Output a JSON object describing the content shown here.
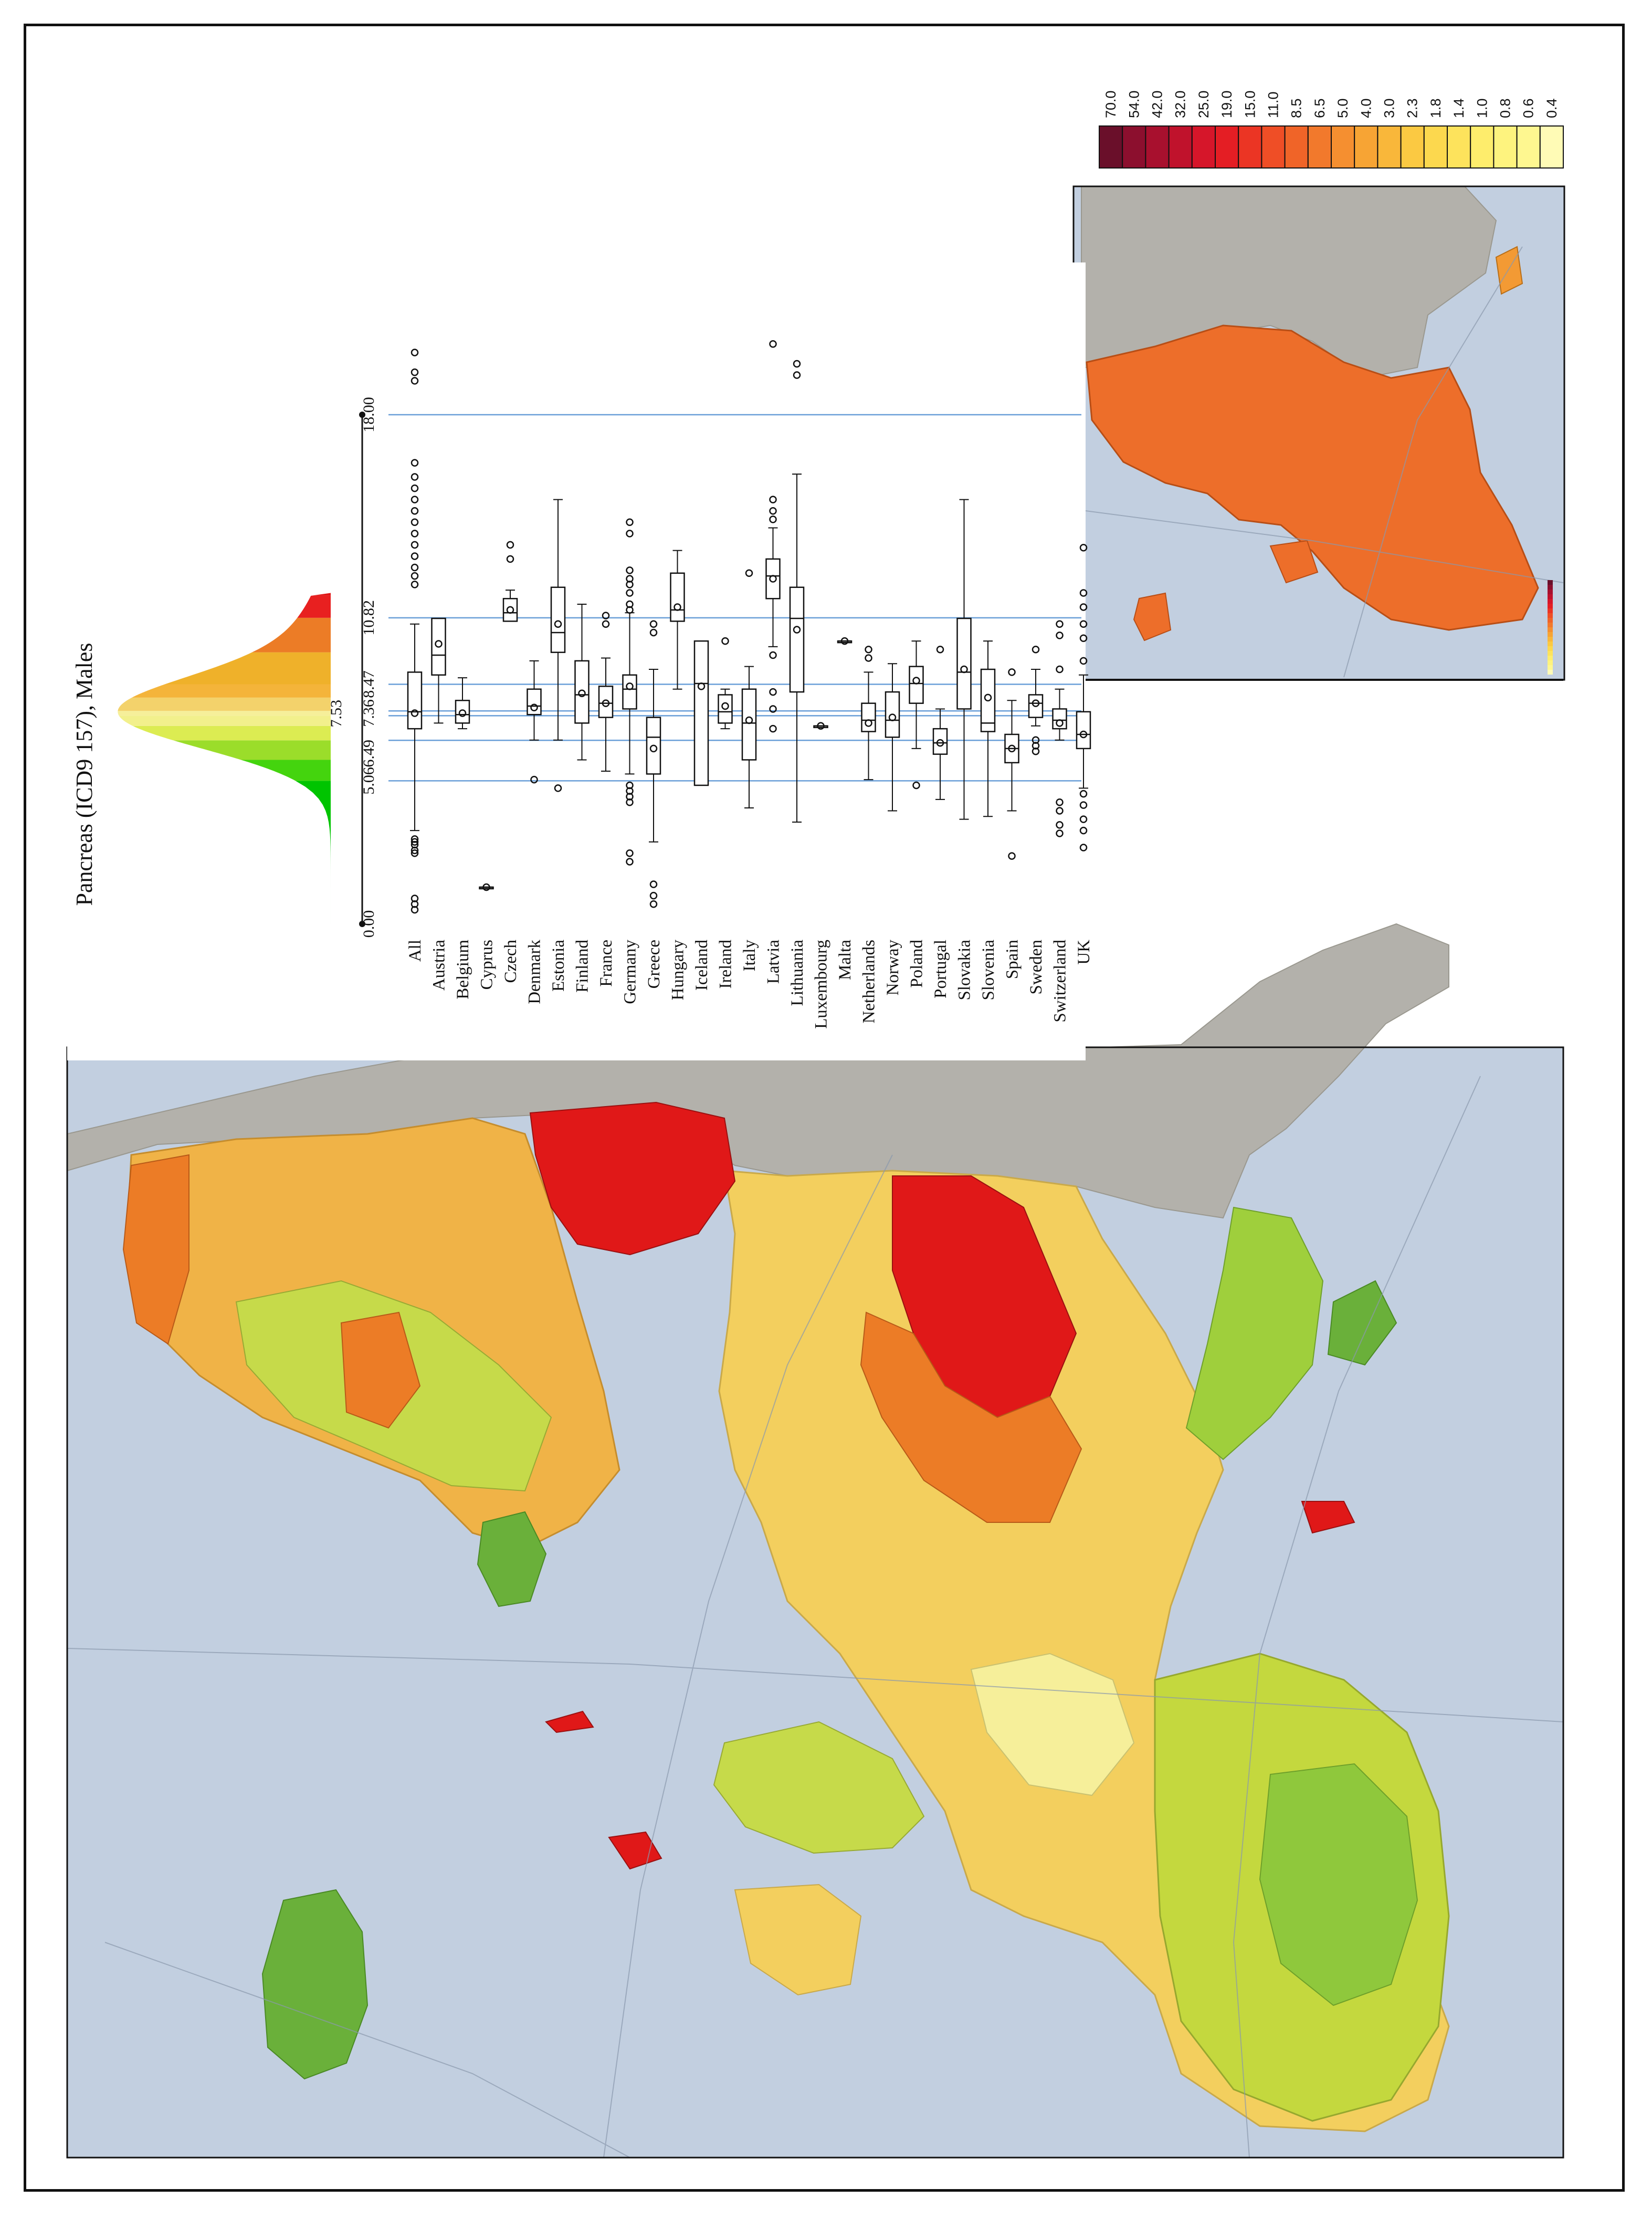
{
  "figure": {
    "title": "Pancreas (ICD9 157), Males"
  },
  "chart_data": {
    "type": "boxplot",
    "orientation": "horizontal (figure rotated 90°)",
    "title": "Pancreas (ICD9 157), Males",
    "axis_ticks": [
      "0.00",
      "5.06",
      "6.49",
      "7.36",
      "7.53",
      "8.47",
      "10.82",
      "18.00"
    ],
    "axis_range": [
      0,
      18
    ],
    "categories": [
      "All",
      "Austria",
      "Belgium",
      "Cyprus",
      "Czech",
      "Denmark",
      "Estonia",
      "Finland",
      "France",
      "Germany",
      "Greece",
      "Hungary",
      "Iceland",
      "Ireland",
      "Italy",
      "Latvia",
      "Lithuania",
      "Luxembourg",
      "Malta",
      "Netherlands",
      "Norway",
      "Poland",
      "Portugal",
      "Slovakia",
      "Slovenia",
      "Spain",
      "Sweden",
      "Switzerland",
      "UK"
    ],
    "boxes": [
      {
        "q1": 6.9,
        "median": 7.5,
        "q3": 8.9,
        "mean": 7.45,
        "wmin": 3.3,
        "wmax": 10.6,
        "outliers": [
          0.5,
          0.7,
          0.9,
          2.5,
          2.6,
          2.8,
          2.9,
          3.0,
          12.0,
          12.3,
          12.6,
          13.0,
          13.4,
          13.8,
          14.2,
          14.6,
          15.0,
          15.4,
          15.8,
          16.3,
          19.2,
          19.5,
          20.2
        ]
      },
      {
        "q1": 8.8,
        "median": 9.5,
        "q3": 10.8,
        "mean": 9.9,
        "wmin": 7.1,
        "wmax": 10.8,
        "outliers": []
      },
      {
        "q1": 7.1,
        "median": 7.4,
        "q3": 7.9,
        "mean": 7.45,
        "wmin": 6.9,
        "wmax": 8.7,
        "outliers": []
      },
      {
        "q1": 1.3,
        "median": 1.3,
        "q3": 1.3,
        "mean": 1.3,
        "wmin": 1.3,
        "wmax": 1.3,
        "outliers": []
      },
      {
        "q1": 10.7,
        "median": 11.0,
        "q3": 11.5,
        "mean": 11.1,
        "wmin": 10.7,
        "wmax": 11.8,
        "outliers": [
          12.9,
          13.4
        ]
      },
      {
        "q1": 7.4,
        "median": 7.7,
        "q3": 8.3,
        "mean": 7.65,
        "wmin": 6.5,
        "wmax": 9.3,
        "outliers": [
          5.1
        ]
      },
      {
        "q1": 9.6,
        "median": 10.3,
        "q3": 11.9,
        "mean": 10.6,
        "wmin": 6.5,
        "wmax": 15.0,
        "outliers": [
          4.8
        ]
      },
      {
        "q1": 7.1,
        "median": 8.1,
        "q3": 9.3,
        "mean": 8.15,
        "wmin": 5.8,
        "wmax": 11.3,
        "outliers": []
      },
      {
        "q1": 7.3,
        "median": 7.8,
        "q3": 8.4,
        "mean": 7.8,
        "wmin": 5.4,
        "wmax": 9.4,
        "outliers": [
          10.6,
          10.9
        ]
      },
      {
        "q1": 7.6,
        "median": 8.3,
        "q3": 8.8,
        "mean": 8.4,
        "wmin": 5.3,
        "wmax": 11.0,
        "outliers": [
          2.2,
          2.5,
          4.3,
          4.5,
          4.7,
          4.9,
          11.1,
          11.3,
          11.7,
          12.0,
          12.2,
          12.5,
          13.8,
          14.2
        ]
      },
      {
        "q1": 5.3,
        "median": 6.6,
        "q3": 7.3,
        "mean": 6.2,
        "wmin": 2.9,
        "wmax": 9.0,
        "outliers": [
          0.7,
          1.0,
          1.4,
          10.3,
          10.6
        ]
      },
      {
        "q1": 10.7,
        "median": 11.1,
        "q3": 12.4,
        "mean": 11.2,
        "wmin": 8.3,
        "wmax": 13.2,
        "outliers": []
      },
      {
        "q1": 4.9,
        "median": 8.5,
        "q3": 10.0,
        "mean": 8.4,
        "wmin": 4.9,
        "wmax": 10.0,
        "outliers": []
      },
      {
        "q1": 7.1,
        "median": 7.5,
        "q3": 8.1,
        "mean": 7.7,
        "wmin": 6.9,
        "wmax": 8.3,
        "outliers": [
          10.0
        ]
      },
      {
        "q1": 5.8,
        "median": 7.1,
        "q3": 8.3,
        "mean": 7.2,
        "wmin": 4.1,
        "wmax": 9.1,
        "outliers": [
          12.4
        ]
      },
      {
        "q1": 11.5,
        "median": 12.3,
        "q3": 12.9,
        "mean": 12.2,
        "wmin": 9.8,
        "wmax": 14.0,
        "outliers": [
          6.9,
          7.6,
          8.2,
          9.5,
          14.3,
          14.6,
          15.0,
          20.5
        ]
      },
      {
        "q1": 8.2,
        "median": 10.8,
        "q3": 11.9,
        "mean": 10.4,
        "wmin": 3.6,
        "wmax": 15.9,
        "outliers": [
          19.4,
          19.8
        ]
      },
      {
        "q1": 7.0,
        "median": 7.0,
        "q3": 7.0,
        "mean": 7.0,
        "wmin": 7.0,
        "wmax": 7.0,
        "outliers": []
      },
      {
        "q1": 10.0,
        "median": 10.0,
        "q3": 10.0,
        "mean": 10.0,
        "wmin": 10.0,
        "wmax": 10.0,
        "outliers": []
      },
      {
        "q1": 6.8,
        "median": 7.2,
        "q3": 7.8,
        "mean": 7.1,
        "wmin": 5.1,
        "wmax": 8.9,
        "outliers": [
          9.4,
          9.7
        ]
      },
      {
        "q1": 6.6,
        "median": 7.2,
        "q3": 8.2,
        "mean": 7.3,
        "wmin": 4.0,
        "wmax": 9.2,
        "outliers": []
      },
      {
        "q1": 7.8,
        "median": 8.5,
        "q3": 9.1,
        "mean": 8.6,
        "wmin": 6.2,
        "wmax": 10.0,
        "outliers": [
          4.9
        ]
      },
      {
        "q1": 6.0,
        "median": 6.4,
        "q3": 6.9,
        "mean": 6.4,
        "wmin": 4.4,
        "wmax": 7.6,
        "outliers": [
          9.7
        ]
      },
      {
        "q1": 7.6,
        "median": 8.9,
        "q3": 10.8,
        "mean": 9.0,
        "wmin": 3.7,
        "wmax": 15.0,
        "outliers": []
      },
      {
        "q1": 6.8,
        "median": 7.1,
        "q3": 9.0,
        "mean": 8.0,
        "wmin": 3.8,
        "wmax": 10.0,
        "outliers": []
      },
      {
        "q1": 5.7,
        "median": 6.2,
        "q3": 6.7,
        "mean": 6.2,
        "wmin": 4.0,
        "wmax": 7.9,
        "outliers": [
          2.4,
          8.9
        ]
      },
      {
        "q1": 7.3,
        "median": 7.8,
        "q3": 8.1,
        "mean": 7.8,
        "wmin": 7.0,
        "wmax": 9.0,
        "outliers": [
          6.1,
          6.3,
          6.5,
          9.7
        ]
      },
      {
        "q1": 6.9,
        "median": 7.2,
        "q3": 7.6,
        "mean": 7.1,
        "wmin": 6.5,
        "wmax": 8.3,
        "outliers": [
          3.2,
          3.5,
          4.0,
          4.3,
          9.0,
          10.2,
          10.6
        ]
      },
      {
        "q1": 6.2,
        "median": 6.7,
        "q3": 7.5,
        "mean": 6.7,
        "wmin": 4.8,
        "wmax": 8.8,
        "outliers": [
          2.7,
          3.3,
          3.7,
          4.2,
          4.6,
          9.3,
          10.1,
          10.6,
          11.2,
          11.7,
          13.3
        ]
      }
    ],
    "reference_lines": [
      5.06,
      6.49,
      7.36,
      7.53,
      8.47,
      10.82,
      18.0
    ],
    "density_bands": [
      {
        "from": 0.0,
        "to": 5.06,
        "color": "#00c400"
      },
      {
        "from": 5.06,
        "to": 5.8,
        "color": "#44d40e"
      },
      {
        "from": 5.8,
        "to": 6.49,
        "color": "#9bdd2a"
      },
      {
        "from": 6.49,
        "to": 7.0,
        "color": "#dcec52"
      },
      {
        "from": 7.0,
        "to": 7.36,
        "color": "#f2f08c"
      },
      {
        "from": 7.36,
        "to": 7.53,
        "color": "#f6ef9a"
      },
      {
        "from": 7.53,
        "to": 8.0,
        "color": "#f3d26b"
      },
      {
        "from": 8.0,
        "to": 8.47,
        "color": "#f4b43a"
      },
      {
        "from": 8.47,
        "to": 9.6,
        "color": "#efb12a"
      },
      {
        "from": 9.6,
        "to": 10.82,
        "color": "#ec7c26"
      },
      {
        "from": 10.82,
        "to": 11.6,
        "color": "#e82020"
      },
      {
        "from": 11.6,
        "to": 18.0,
        "color": "#e01818"
      }
    ]
  },
  "legend": {
    "values": [
      "70.0",
      "54.0",
      "42.0",
      "32.0",
      "25.0",
      "19.0",
      "15.0",
      "11.0",
      "8.5",
      "6.5",
      "5.0",
      "4.0",
      "3.0",
      "2.3",
      "1.8",
      "1.4",
      "1.0",
      "0.8",
      "0.6",
      "0.4"
    ],
    "colors": [
      "#6a0f2a",
      "#8c0f2e",
      "#a8102e",
      "#c0122c",
      "#d6162a",
      "#e41e24",
      "#eb3524",
      "#ef4e26",
      "#f06428",
      "#f2792c",
      "#f58f30",
      "#f7a434",
      "#f9b73a",
      "#fbc942",
      "#fcd84e",
      "#fde35c",
      "#feed6c",
      "#fef37e",
      "#fef790",
      "#fffbb6"
    ]
  },
  "colors": {
    "sea": "#c2cfe0",
    "land_other": "#b3b1ab",
    "border": "#111111",
    "ref_line": "#6a9fd8"
  }
}
